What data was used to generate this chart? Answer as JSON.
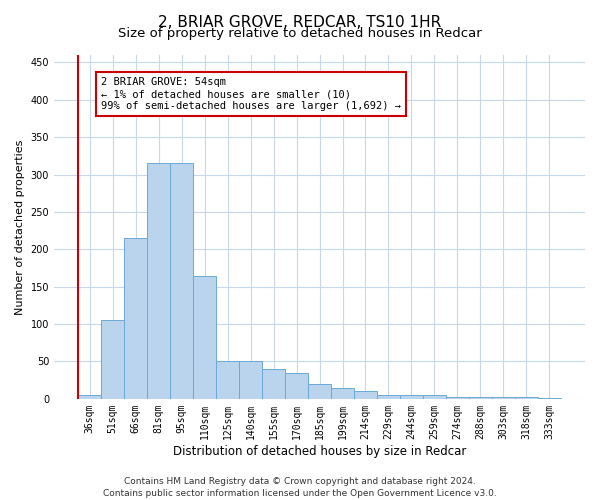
{
  "title_line1": "2, BRIAR GROVE, REDCAR, TS10 1HR",
  "title_line2": "Size of property relative to detached houses in Redcar",
  "xlabel": "Distribution of detached houses by size in Redcar",
  "ylabel": "Number of detached properties",
  "categories": [
    "36sqm",
    "51sqm",
    "66sqm",
    "81sqm",
    "95sqm",
    "110sqm",
    "125sqm",
    "140sqm",
    "155sqm",
    "170sqm",
    "185sqm",
    "199sqm",
    "214sqm",
    "229sqm",
    "244sqm",
    "259sqm",
    "274sqm",
    "288sqm",
    "303sqm",
    "318sqm",
    "333sqm"
  ],
  "values": [
    5,
    105,
    215,
    315,
    315,
    165,
    50,
    50,
    40,
    35,
    20,
    15,
    10,
    5,
    5,
    5,
    2,
    2,
    2,
    2,
    1
  ],
  "bar_color": "#bad4ee",
  "bar_edge_color": "#6aaad4",
  "ylim": [
    0,
    460
  ],
  "yticks": [
    0,
    50,
    100,
    150,
    200,
    250,
    300,
    350,
    400,
    450
  ],
  "annotation_text": "2 BRIAR GROVE: 54sqm\n← 1% of detached houses are smaller (10)\n99% of semi-detached houses are larger (1,692) →",
  "annotation_box_color": "#ffffff",
  "annotation_border_color": "#cc0000",
  "vline_color": "#cc0000",
  "footer_text": "Contains HM Land Registry data © Crown copyright and database right 2024.\nContains public sector information licensed under the Open Government Licence v3.0.",
  "bg_color": "#ffffff",
  "grid_color": "#c8d8ec",
  "title_fontsize": 11,
  "subtitle_fontsize": 9.5,
  "tick_fontsize": 7,
  "ylabel_fontsize": 8,
  "xlabel_fontsize": 8.5,
  "footer_fontsize": 6.5,
  "annot_fontsize": 7.5
}
